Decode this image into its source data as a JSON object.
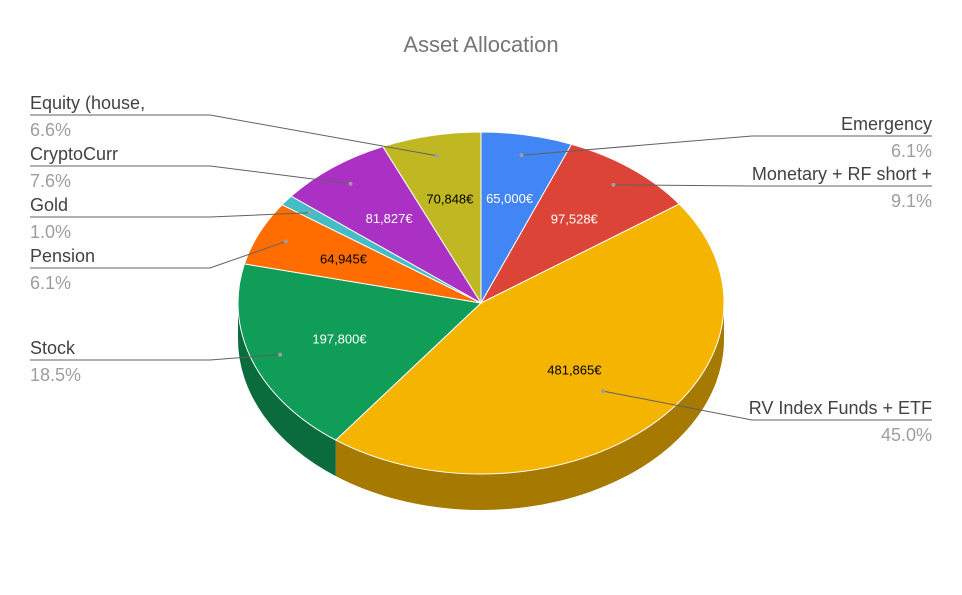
{
  "chart_data": {
    "type": "pie",
    "title": "Asset Allocation",
    "is_3d": true,
    "legend": "labeled",
    "slices": [
      {
        "label": "Emergency",
        "value": 65000,
        "value_label": "65,000€",
        "percent_label": "6.1%",
        "color": "#4285f4"
      },
      {
        "label": "Monetary + RF short +",
        "value": 97528,
        "value_label": "97,528€",
        "percent_label": "9.1%",
        "color": "#db4437"
      },
      {
        "label": "RV Index Funds + ETF",
        "value": 481865,
        "value_label": "481,865€",
        "percent_label": "45.0%",
        "color": "#f4b400"
      },
      {
        "label": "Stock",
        "value": 197800,
        "value_label": "197,800€",
        "percent_label": "18.5%",
        "color": "#0f9d58"
      },
      {
        "label": "Pension",
        "value": 64945,
        "value_label": "64,945€",
        "percent_label": "6.1%",
        "color": "#ff6d00"
      },
      {
        "label": "Gold",
        "value": 10700,
        "value_label": "",
        "percent_label": "1.0%",
        "color": "#46bdc6"
      },
      {
        "label": "CryptoCurr",
        "value": 81827,
        "value_label": "81,827€",
        "percent_label": "7.6%",
        "color": "#ab30c4"
      },
      {
        "label": "Equity (house,",
        "value": 70848,
        "value_label": "70,848€",
        "percent_label": "6.6%",
        "color": "#c0b823"
      }
    ]
  }
}
